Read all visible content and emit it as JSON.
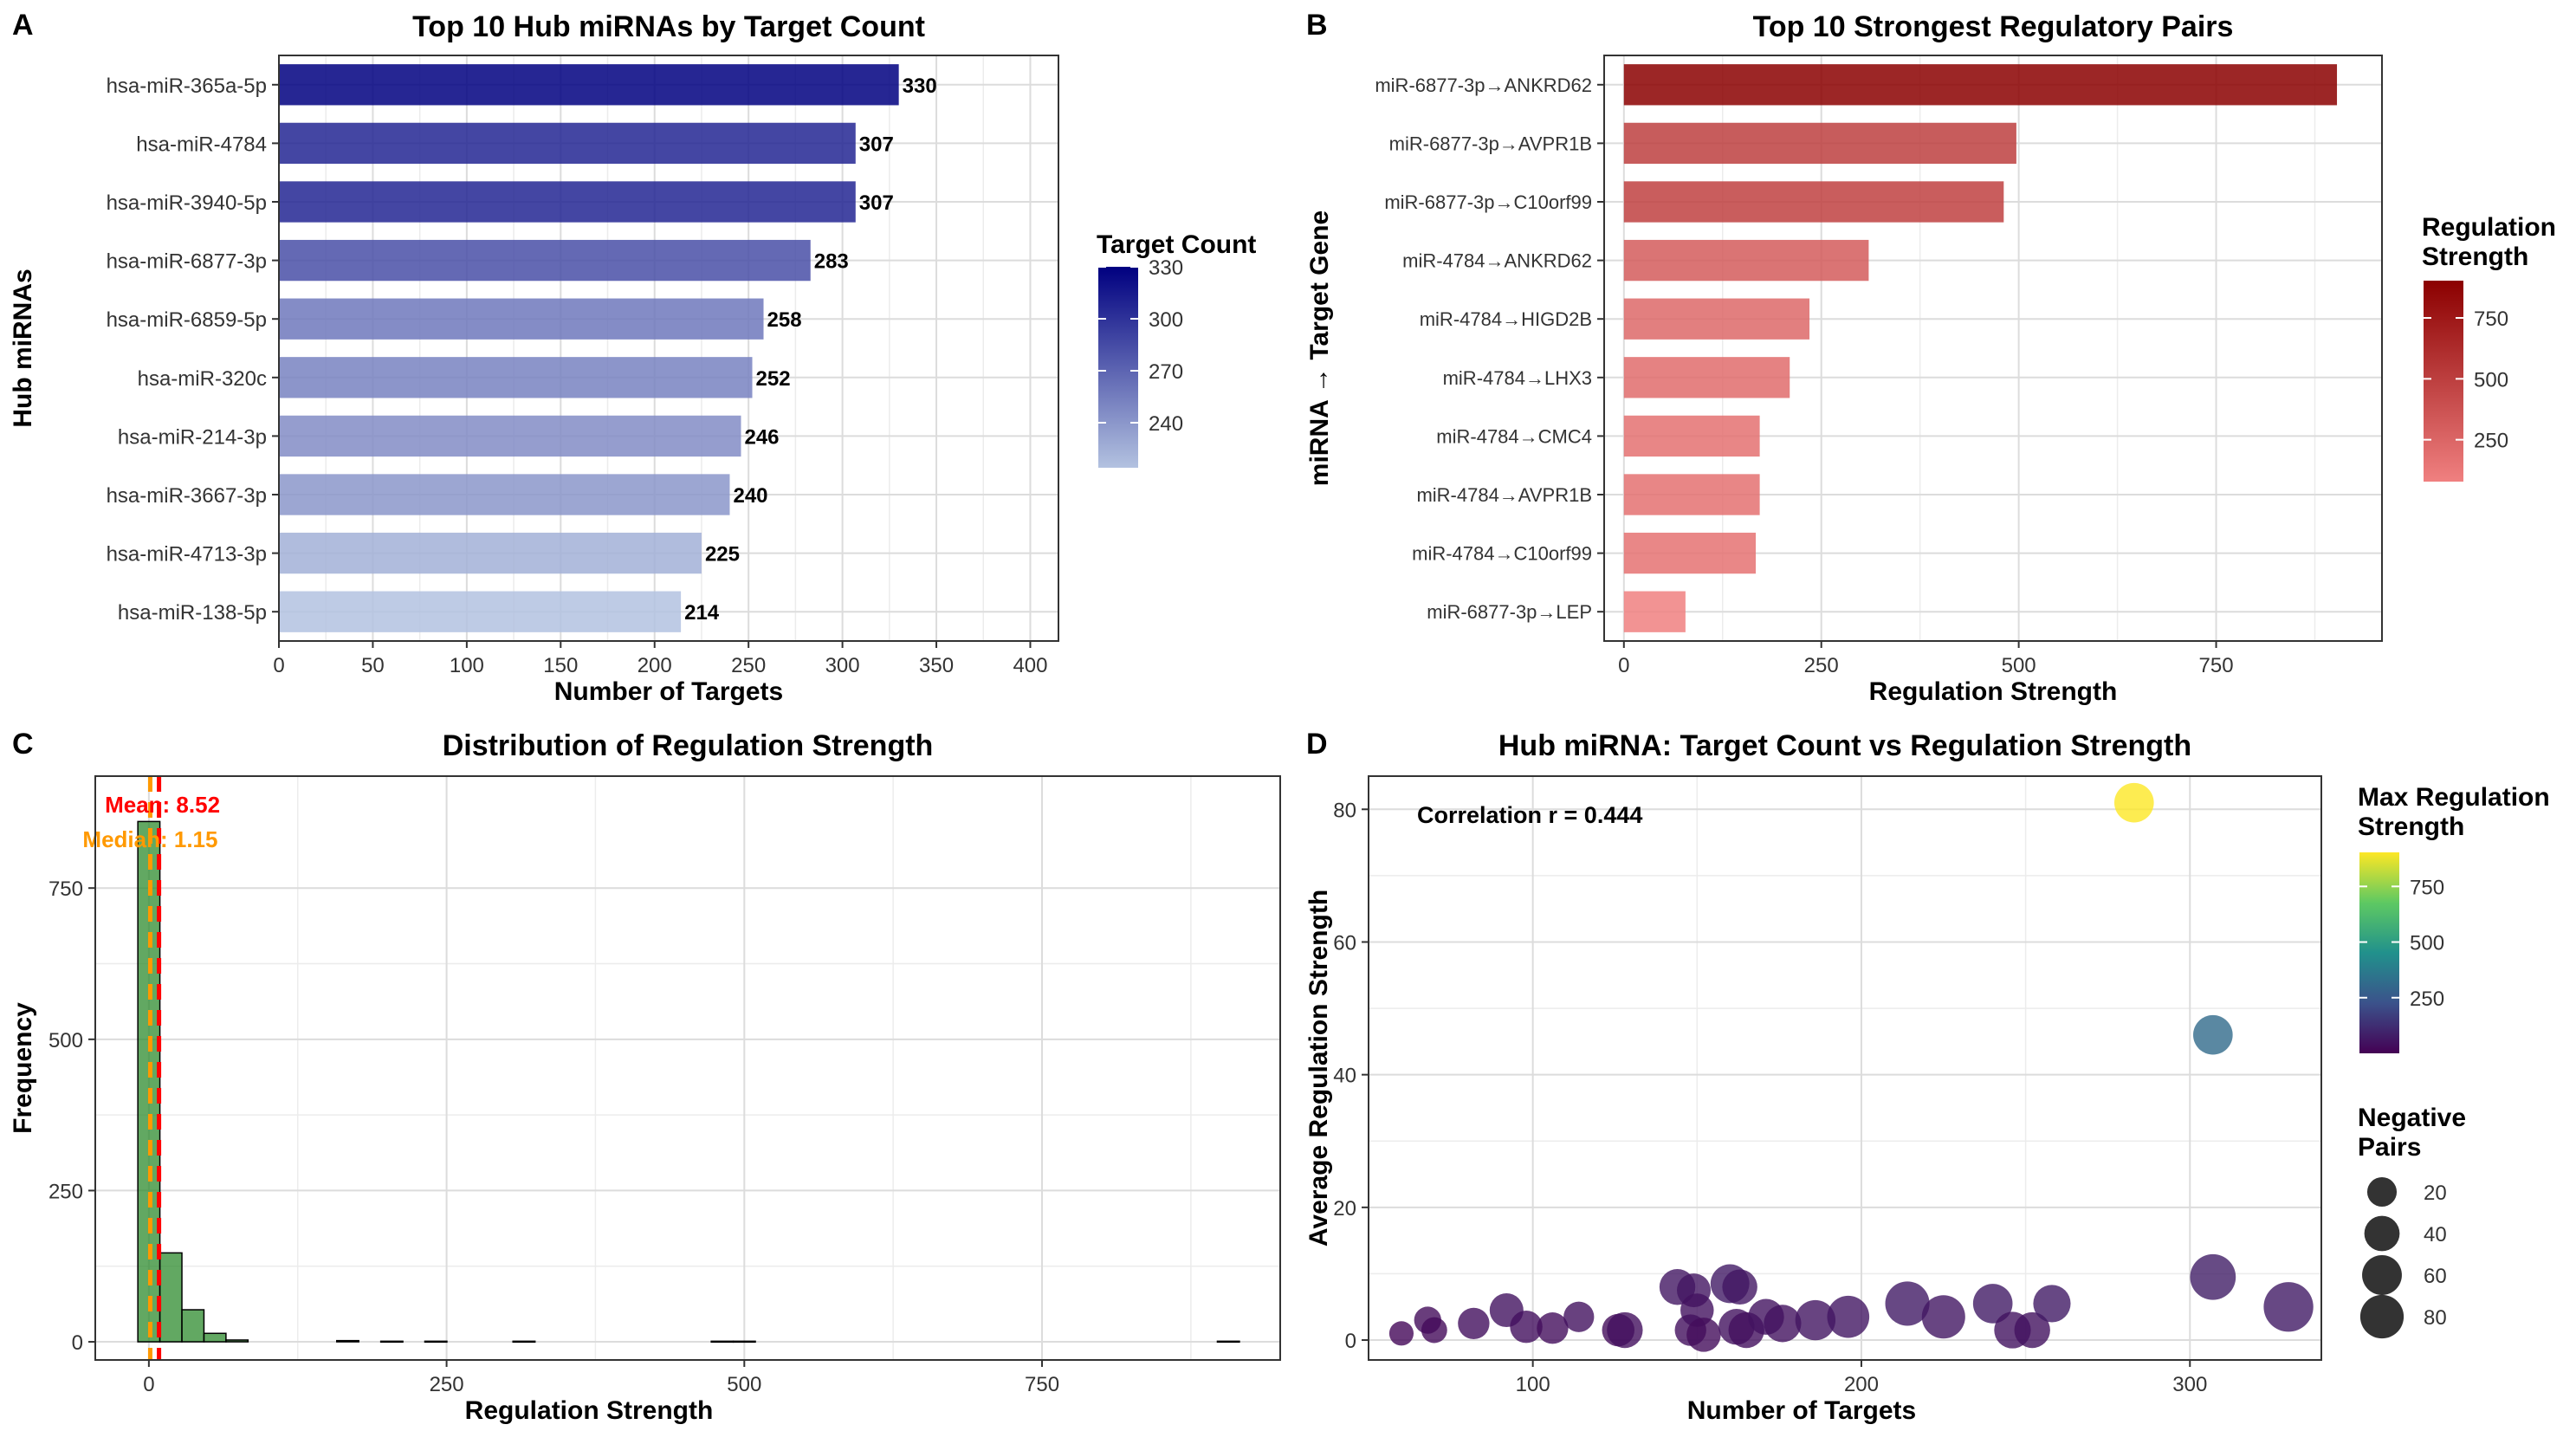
{
  "chart_data": [
    {
      "panel_letter": "A",
      "type": "bar",
      "orientation": "horizontal",
      "title": "Top 10 Hub miRNAs by Target Count",
      "xlabel": "Number of Targets",
      "ylabel": "Hub miRNAs",
      "xlim": [
        0,
        415
      ],
      "xticks": [
        0,
        50,
        100,
        150,
        200,
        250,
        300,
        350,
        400
      ],
      "categories": [
        "hsa-miR-365a-5p",
        "hsa-miR-4784",
        "hsa-miR-3940-5p",
        "hsa-miR-6877-3p",
        "hsa-miR-6859-5p",
        "hsa-miR-320c",
        "hsa-miR-214-3p",
        "hsa-miR-3667-3p",
        "hsa-miR-4713-3p",
        "hsa-miR-138-5p"
      ],
      "values": [
        330,
        307,
        307,
        283,
        258,
        252,
        246,
        240,
        225,
        214
      ],
      "data_labels": [
        "330",
        "307",
        "307",
        "283",
        "258",
        "252",
        "246",
        "240",
        "225",
        "214"
      ],
      "grid": true,
      "legend": {
        "title": "Target Count",
        "type": "colorbar",
        "position": "right",
        "range": [
          214,
          330
        ],
        "ticks": [
          240,
          270,
          300,
          330
        ],
        "tick_labels": [
          "240",
          "270",
          "300",
          "330"
        ],
        "colors": [
          "#b3c2e0",
          "#000080"
        ]
      }
    },
    {
      "panel_letter": "B",
      "type": "bar",
      "orientation": "horizontal",
      "title": "Top 10 Strongest Regulatory Pairs",
      "xlabel": "Regulation Strength",
      "ylabel": "miRNA → Target Gene",
      "xlim": [
        -25,
        960
      ],
      "xticks": [
        0,
        250,
        500,
        750
      ],
      "categories": [
        "miR-6877-3p→ANKRD62",
        "miR-6877-3p→AVPR1B",
        "miR-6877-3p→C10orf99",
        "miR-4784→ANKRD62",
        "miR-4784→HIGD2B",
        "miR-4784→LHX3",
        "miR-4784→CMC4",
        "miR-4784→AVPR1B",
        "miR-4784→C10orf99",
        "miR-6877-3p→LEP"
      ],
      "values": [
        903,
        497,
        481,
        310,
        235,
        210,
        172,
        172,
        167,
        78
      ],
      "grid": true,
      "legend": {
        "title": "Regulation Strength",
        "type": "colorbar",
        "position": "right",
        "range": [
          78,
          903
        ],
        "ticks": [
          250,
          500,
          750
        ],
        "tick_labels": [
          "250",
          "500",
          "750"
        ],
        "colors": [
          "#f08080",
          "#8b0000"
        ]
      }
    },
    {
      "panel_letter": "C",
      "type": "histogram",
      "title": "Distribution of Regulation Strength",
      "xlabel": "Regulation Strength",
      "ylabel": "Frequency",
      "xlim": [
        -45,
        950
      ],
      "ylim": [
        -30,
        935
      ],
      "xticks": [
        0,
        250,
        500,
        750
      ],
      "yticks": [
        0,
        250,
        500,
        750
      ],
      "bin_width": 18.5,
      "bins": [
        {
          "x0": -9.25,
          "x1": 9.25,
          "count": 860
        },
        {
          "x0": 9.25,
          "x1": 27.75,
          "count": 147
        },
        {
          "x0": 27.75,
          "x1": 46.25,
          "count": 53
        },
        {
          "x0": 46.25,
          "x1": 64.75,
          "count": 14
        },
        {
          "x0": 64.75,
          "x1": 83.25,
          "count": 3
        },
        {
          "x0": 157.75,
          "x1": 176.25,
          "count": 2
        },
        {
          "x0": 194.75,
          "x1": 213.25,
          "count": 1
        },
        {
          "x0": 231.75,
          "x1": 250.25,
          "count": 1
        },
        {
          "x0": 305.75,
          "x1": 324.25,
          "count": 1
        },
        {
          "x0": 472.25,
          "x1": 490.75,
          "count": 1
        },
        {
          "x0": 490.75,
          "x1": 509.25,
          "count": 1
        },
        {
          "x0": 897.25,
          "x1": 915.75,
          "count": 1
        }
      ],
      "reference_lines": [
        {
          "label": "Mean: 8.52",
          "value": 8.52,
          "color": "#ff0000"
        },
        {
          "label": "Median: 1.15",
          "value": 1.15,
          "color": "#ff9900"
        }
      ],
      "bar_color": "#2e8b2e",
      "grid": true
    },
    {
      "panel_letter": "D",
      "type": "scatter",
      "title": "Hub miRNA: Target Count vs Regulation Strength",
      "xlabel": "Number of Targets",
      "ylabel": "Average Regulation Strength",
      "xlim": [
        50,
        340
      ],
      "ylim": [
        -3,
        85
      ],
      "xticks": [
        100,
        200,
        300
      ],
      "yticks": [
        0,
        20,
        40,
        60,
        80
      ],
      "annotation": "Correlation r = 0.444",
      "grid": true,
      "points": [
        {
          "x": 60,
          "y": 1,
          "size": 8,
          "max_strength": 20
        },
        {
          "x": 68,
          "y": 3,
          "size": 12,
          "max_strength": 30
        },
        {
          "x": 70,
          "y": 1.5,
          "size": 10,
          "max_strength": 25
        },
        {
          "x": 82,
          "y": 2.5,
          "size": 20,
          "max_strength": 40
        },
        {
          "x": 92,
          "y": 4.5,
          "size": 25,
          "max_strength": 50
        },
        {
          "x": 98,
          "y": 2,
          "size": 22,
          "max_strength": 40
        },
        {
          "x": 106,
          "y": 1.8,
          "size": 20,
          "max_strength": 35
        },
        {
          "x": 114,
          "y": 3.5,
          "size": 18,
          "max_strength": 45
        },
        {
          "x": 126,
          "y": 1.5,
          "size": 22,
          "max_strength": 30
        },
        {
          "x": 128,
          "y": 1.5,
          "size": 30,
          "max_strength": 40
        },
        {
          "x": 144,
          "y": 8,
          "size": 30,
          "max_strength": 60
        },
        {
          "x": 148,
          "y": 1.5,
          "size": 20,
          "max_strength": 40
        },
        {
          "x": 149,
          "y": 7.5,
          "size": 25,
          "max_strength": 55
        },
        {
          "x": 150,
          "y": 4.5,
          "size": 24,
          "max_strength": 45
        },
        {
          "x": 152,
          "y": 0.8,
          "size": 26,
          "max_strength": 30
        },
        {
          "x": 160,
          "y": 8.5,
          "size": 38,
          "max_strength": 70
        },
        {
          "x": 162,
          "y": 2,
          "size": 30,
          "max_strength": 45
        },
        {
          "x": 163,
          "y": 8,
          "size": 28,
          "max_strength": 60
        },
        {
          "x": 165,
          "y": 1.5,
          "size": 30,
          "max_strength": 40
        },
        {
          "x": 171,
          "y": 3.5,
          "size": 30,
          "max_strength": 50
        },
        {
          "x": 176,
          "y": 2.5,
          "size": 34,
          "max_strength": 45
        },
        {
          "x": 186,
          "y": 3,
          "size": 42,
          "max_strength": 55
        },
        {
          "x": 196,
          "y": 3.5,
          "size": 48,
          "max_strength": 60
        },
        {
          "x": 214,
          "y": 5.5,
          "size": 55,
          "max_strength": 70
        },
        {
          "x": 225,
          "y": 3.5,
          "size": 52,
          "max_strength": 60
        },
        {
          "x": 240,
          "y": 5.5,
          "size": 40,
          "max_strength": 70
        },
        {
          "x": 246,
          "y": 1.5,
          "size": 32,
          "max_strength": 50
        },
        {
          "x": 252,
          "y": 1.5,
          "size": 30,
          "max_strength": 45
        },
        {
          "x": 258,
          "y": 5.5,
          "size": 34,
          "max_strength": 70
        },
        {
          "x": 283,
          "y": 81,
          "size": 40,
          "max_strength": 903
        },
        {
          "x": 307,
          "y": 46,
          "size": 40,
          "max_strength": 310
        },
        {
          "x": 307,
          "y": 9.5,
          "size": 60,
          "max_strength": 80
        },
        {
          "x": 330,
          "y": 5,
          "size": 75,
          "max_strength": 70
        }
      ],
      "legend": [
        {
          "title": "Max Regulation Strength",
          "type": "colorbar",
          "position": "right",
          "range": [
            0,
            903
          ],
          "ticks": [
            250,
            500,
            750
          ],
          "tick_labels": [
            "250",
            "500",
            "750"
          ],
          "colors": [
            "#440154",
            "#3b528b",
            "#21918c",
            "#5ec962",
            "#fde725"
          ]
        },
        {
          "title": "Negative Pairs",
          "type": "size",
          "position": "right",
          "values": [
            20,
            40,
            60,
            80
          ],
          "labels": [
            "20",
            "40",
            "60",
            "80"
          ]
        }
      ]
    }
  ]
}
